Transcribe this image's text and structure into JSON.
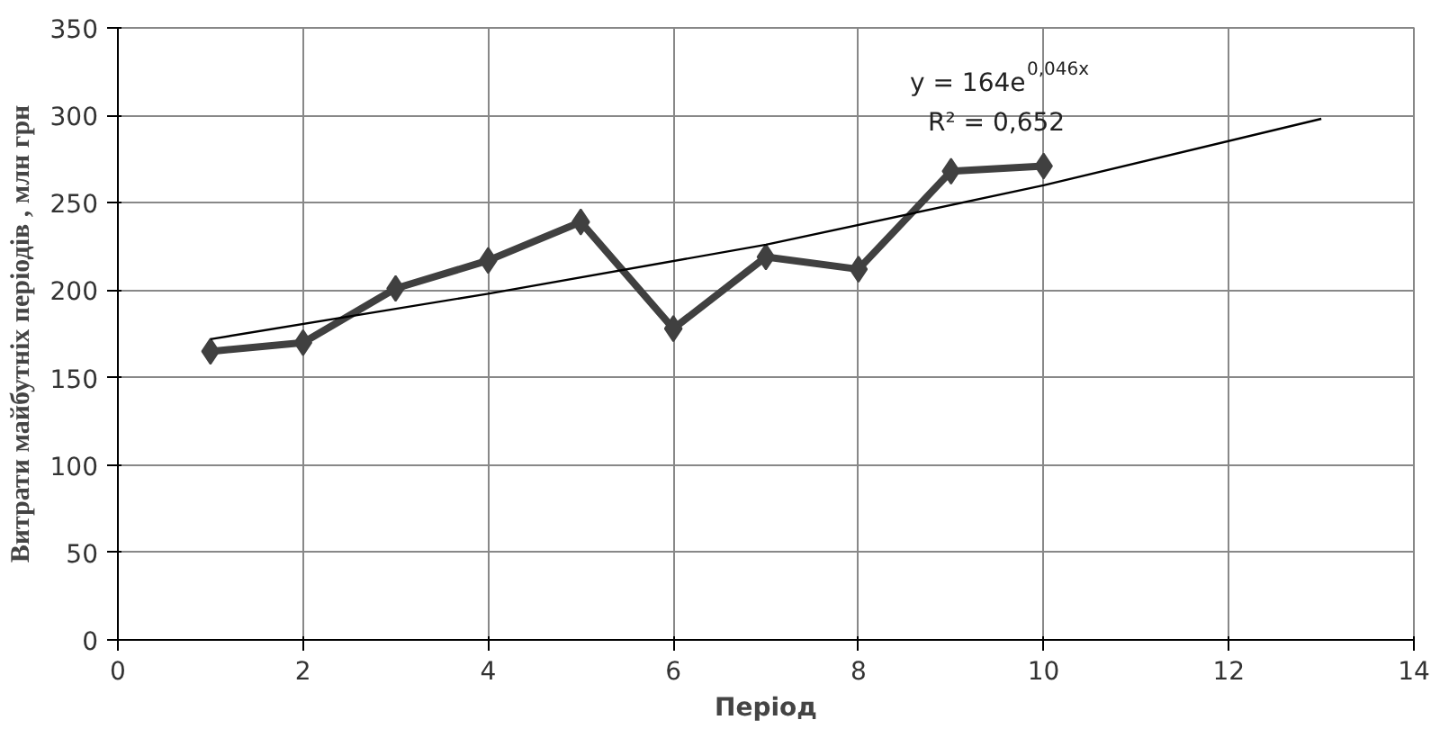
{
  "chart_data": {
    "type": "line",
    "xlabel": "Період",
    "ylabel": "Витрати майбутніх періодів , млн грн",
    "xlim": [
      0,
      14
    ],
    "xticks": [
      0,
      2,
      4,
      6,
      8,
      10,
      12,
      14
    ],
    "ylim": [
      0,
      350
    ],
    "yticks": [
      0,
      50,
      100,
      150,
      200,
      250,
      300,
      350
    ],
    "grid": true,
    "series": [
      {
        "color": "#404040",
        "marker": "diamond",
        "x": [
          1,
          2,
          3,
          4,
          5,
          6,
          7,
          8,
          9,
          10
        ],
        "values": [
          165,
          170,
          201,
          217,
          239,
          178,
          219,
          212,
          268,
          271
        ]
      },
      {
        "color": "#000000",
        "marker": "none",
        "x": [
          1,
          4,
          7,
          10,
          13
        ],
        "values": [
          172,
          198,
          226,
          260,
          298
        ]
      }
    ],
    "annotations": [
      "y = 164e$^{0,046x}$",
      "R² = 0,652"
    ]
  }
}
